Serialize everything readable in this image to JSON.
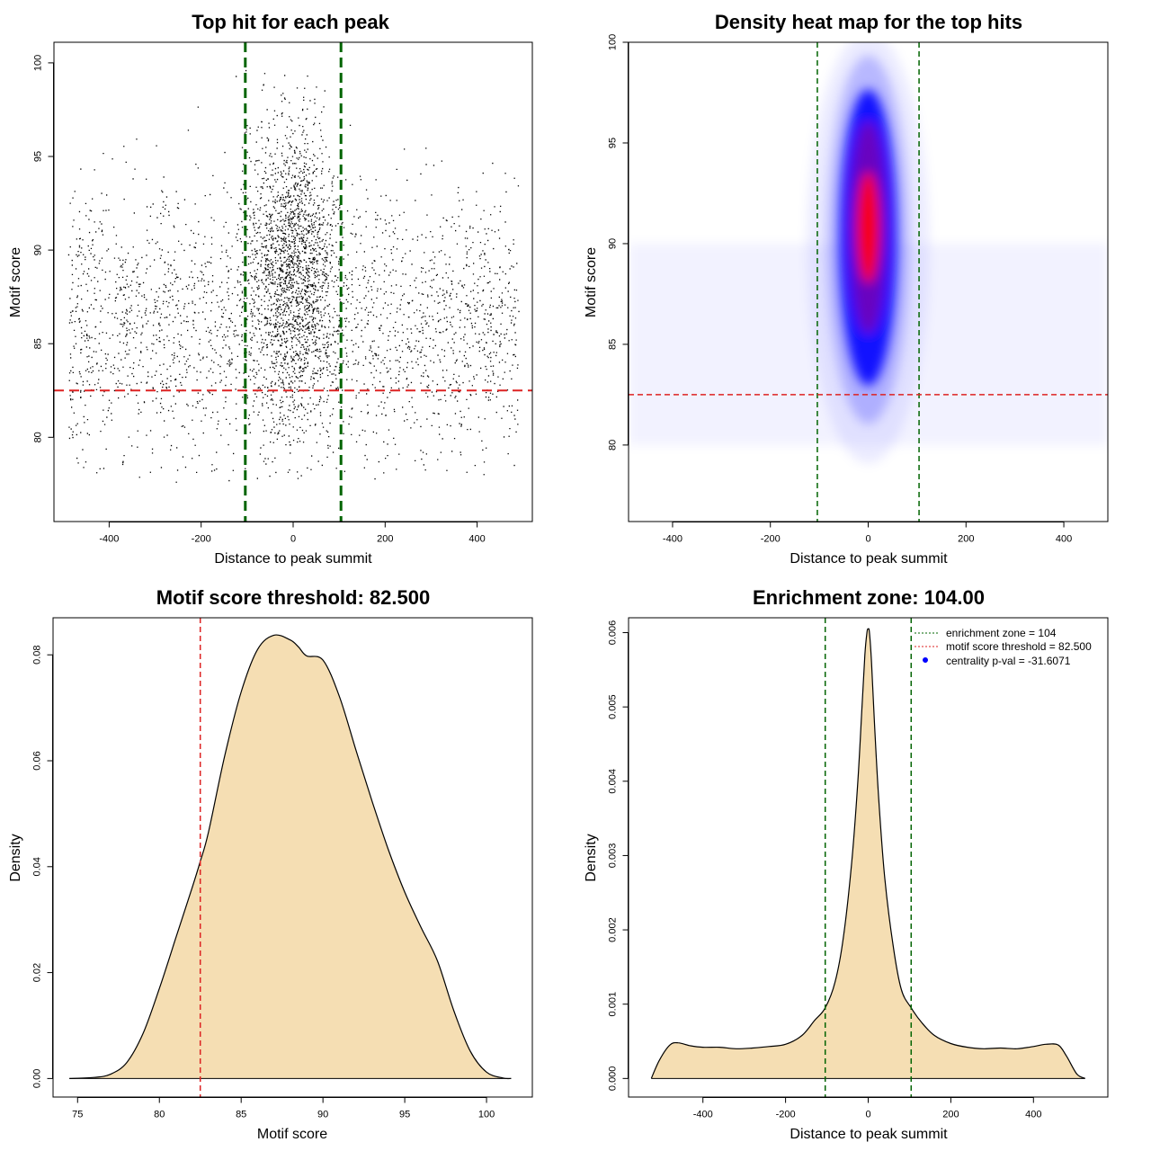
{
  "chart_data": [
    {
      "type": "scatter",
      "title": "Top hit for each peak",
      "xlabel": "Distance to peak summit",
      "ylabel": "Motif score",
      "xlim": [
        -520,
        520
      ],
      "ylim": [
        75.5,
        101.1
      ],
      "xticks": [
        -400,
        -200,
        0,
        200,
        400
      ],
      "yticks": [
        80,
        85,
        90,
        95,
        100
      ],
      "xtick_labels": [
        "-400",
        "-200",
        "0",
        "200",
        "400"
      ],
      "ytick_labels": [
        "80",
        "85",
        "90",
        "95",
        "100"
      ],
      "vlines": [
        -104,
        104
      ],
      "hline": 82.5,
      "point_color": "#000000",
      "vline_color": "#006400",
      "hline_color": "#dd2222"
    },
    {
      "type": "heatmap",
      "title": "Density heat map for the top hits",
      "xlabel": "Distance to peak summit",
      "ylabel": "Motif score",
      "xlim": [
        -490,
        490
      ],
      "ylim": [
        76.2,
        100.0
      ],
      "xticks": [
        -400,
        -200,
        0,
        200,
        400
      ],
      "yticks": [
        80,
        85,
        90,
        95,
        100
      ],
      "xtick_labels": [
        "-400",
        "-200",
        "0",
        "200",
        "400"
      ],
      "ytick_labels": [
        "80",
        "85",
        "90",
        "95",
        "100"
      ],
      "vlines": [
        -104,
        104
      ],
      "hline": 82.5,
      "peak": {
        "x": 0,
        "y": 90.8
      },
      "colors": [
        "#ffffff",
        "#0000ff",
        "#ff0000"
      ]
    },
    {
      "type": "area",
      "title": "Motif score threshold: 82.500",
      "xlabel": "Motif score",
      "ylabel": "Density",
      "xlim": [
        73.5,
        102.8
      ],
      "ylim": [
        -0.0035,
        0.087
      ],
      "xticks": [
        75,
        80,
        85,
        90,
        95,
        100
      ],
      "yticks": [
        0.0,
        0.02,
        0.04,
        0.06,
        0.08
      ],
      "xtick_labels": [
        "75",
        "80",
        "85",
        "90",
        "95",
        "100"
      ],
      "ytick_labels": [
        "0.00",
        "0.02",
        "0.04",
        "0.06",
        "0.08"
      ],
      "x": [
        74.5,
        76,
        77,
        78,
        79,
        80,
        81,
        82,
        82.5,
        83,
        84,
        85,
        86,
        87,
        88,
        88.5,
        89,
        90,
        91,
        92,
        93,
        94,
        95,
        96,
        97,
        98,
        99,
        100,
        101,
        101.5
      ],
      "y": [
        0.0,
        0.0002,
        0.0008,
        0.003,
        0.0085,
        0.017,
        0.0265,
        0.036,
        0.041,
        0.0465,
        0.061,
        0.073,
        0.081,
        0.0837,
        0.0828,
        0.0815,
        0.0798,
        0.079,
        0.0722,
        0.0622,
        0.0524,
        0.0432,
        0.0352,
        0.0285,
        0.0222,
        0.0128,
        0.0052,
        0.0012,
        0.0001,
        0.0
      ],
      "vline": 82.5,
      "fill": "#f5deb3",
      "vline_color": "#dd2222"
    },
    {
      "type": "area",
      "title": "Enrichment zone: 104.00",
      "xlabel": "Distance to peak summit",
      "ylabel": "Density",
      "xlim": [
        -580,
        580
      ],
      "ylim": [
        -0.00025,
        0.0062
      ],
      "xticks": [
        -400,
        -200,
        0,
        200,
        400
      ],
      "yticks": [
        0.0,
        0.001,
        0.002,
        0.003,
        0.004,
        0.005,
        0.006
      ],
      "xtick_labels": [
        "-400",
        "-200",
        "0",
        "200",
        "400"
      ],
      "ytick_labels": [
        "0.000",
        "0.001",
        "0.002",
        "0.003",
        "0.004",
        "0.005",
        "0.006"
      ],
      "x": [
        -525,
        -505,
        -480,
        -460,
        -430,
        -400,
        -360,
        -320,
        -280,
        -240,
        -200,
        -160,
        -130,
        -104,
        -80,
        -60,
        -40,
        -25,
        -15,
        -8,
        -3,
        0,
        3,
        8,
        15,
        25,
        40,
        60,
        80,
        104,
        130,
        160,
        200,
        240,
        280,
        320,
        360,
        400,
        430,
        460,
        480,
        505,
        525
      ],
      "y": [
        0.0,
        0.00025,
        0.00045,
        0.00048,
        0.00044,
        0.00042,
        0.00042,
        0.0004,
        0.00041,
        0.00043,
        0.00046,
        0.00058,
        0.00078,
        0.00095,
        0.0013,
        0.0019,
        0.0029,
        0.004,
        0.005,
        0.0057,
        0.006,
        0.00605,
        0.006,
        0.0056,
        0.0048,
        0.0038,
        0.0027,
        0.0018,
        0.0012,
        0.00095,
        0.00075,
        0.00058,
        0.00047,
        0.00042,
        0.0004,
        0.00041,
        0.0004,
        0.00043,
        0.00046,
        0.00045,
        0.0003,
        6e-05,
        0.0
      ],
      "vlines": [
        -104,
        104
      ],
      "fill": "#f5deb3",
      "vline_color": "#006400",
      "legend": [
        {
          "label": "enrichment zone = 104",
          "color": "#006400",
          "marker": "line"
        },
        {
          "label": "motif score threshold = 82.500",
          "color": "#dd2222",
          "marker": "line"
        },
        {
          "label": "centrality p-val = -31.6071",
          "color": "#0000ff",
          "marker": "point"
        }
      ]
    }
  ]
}
